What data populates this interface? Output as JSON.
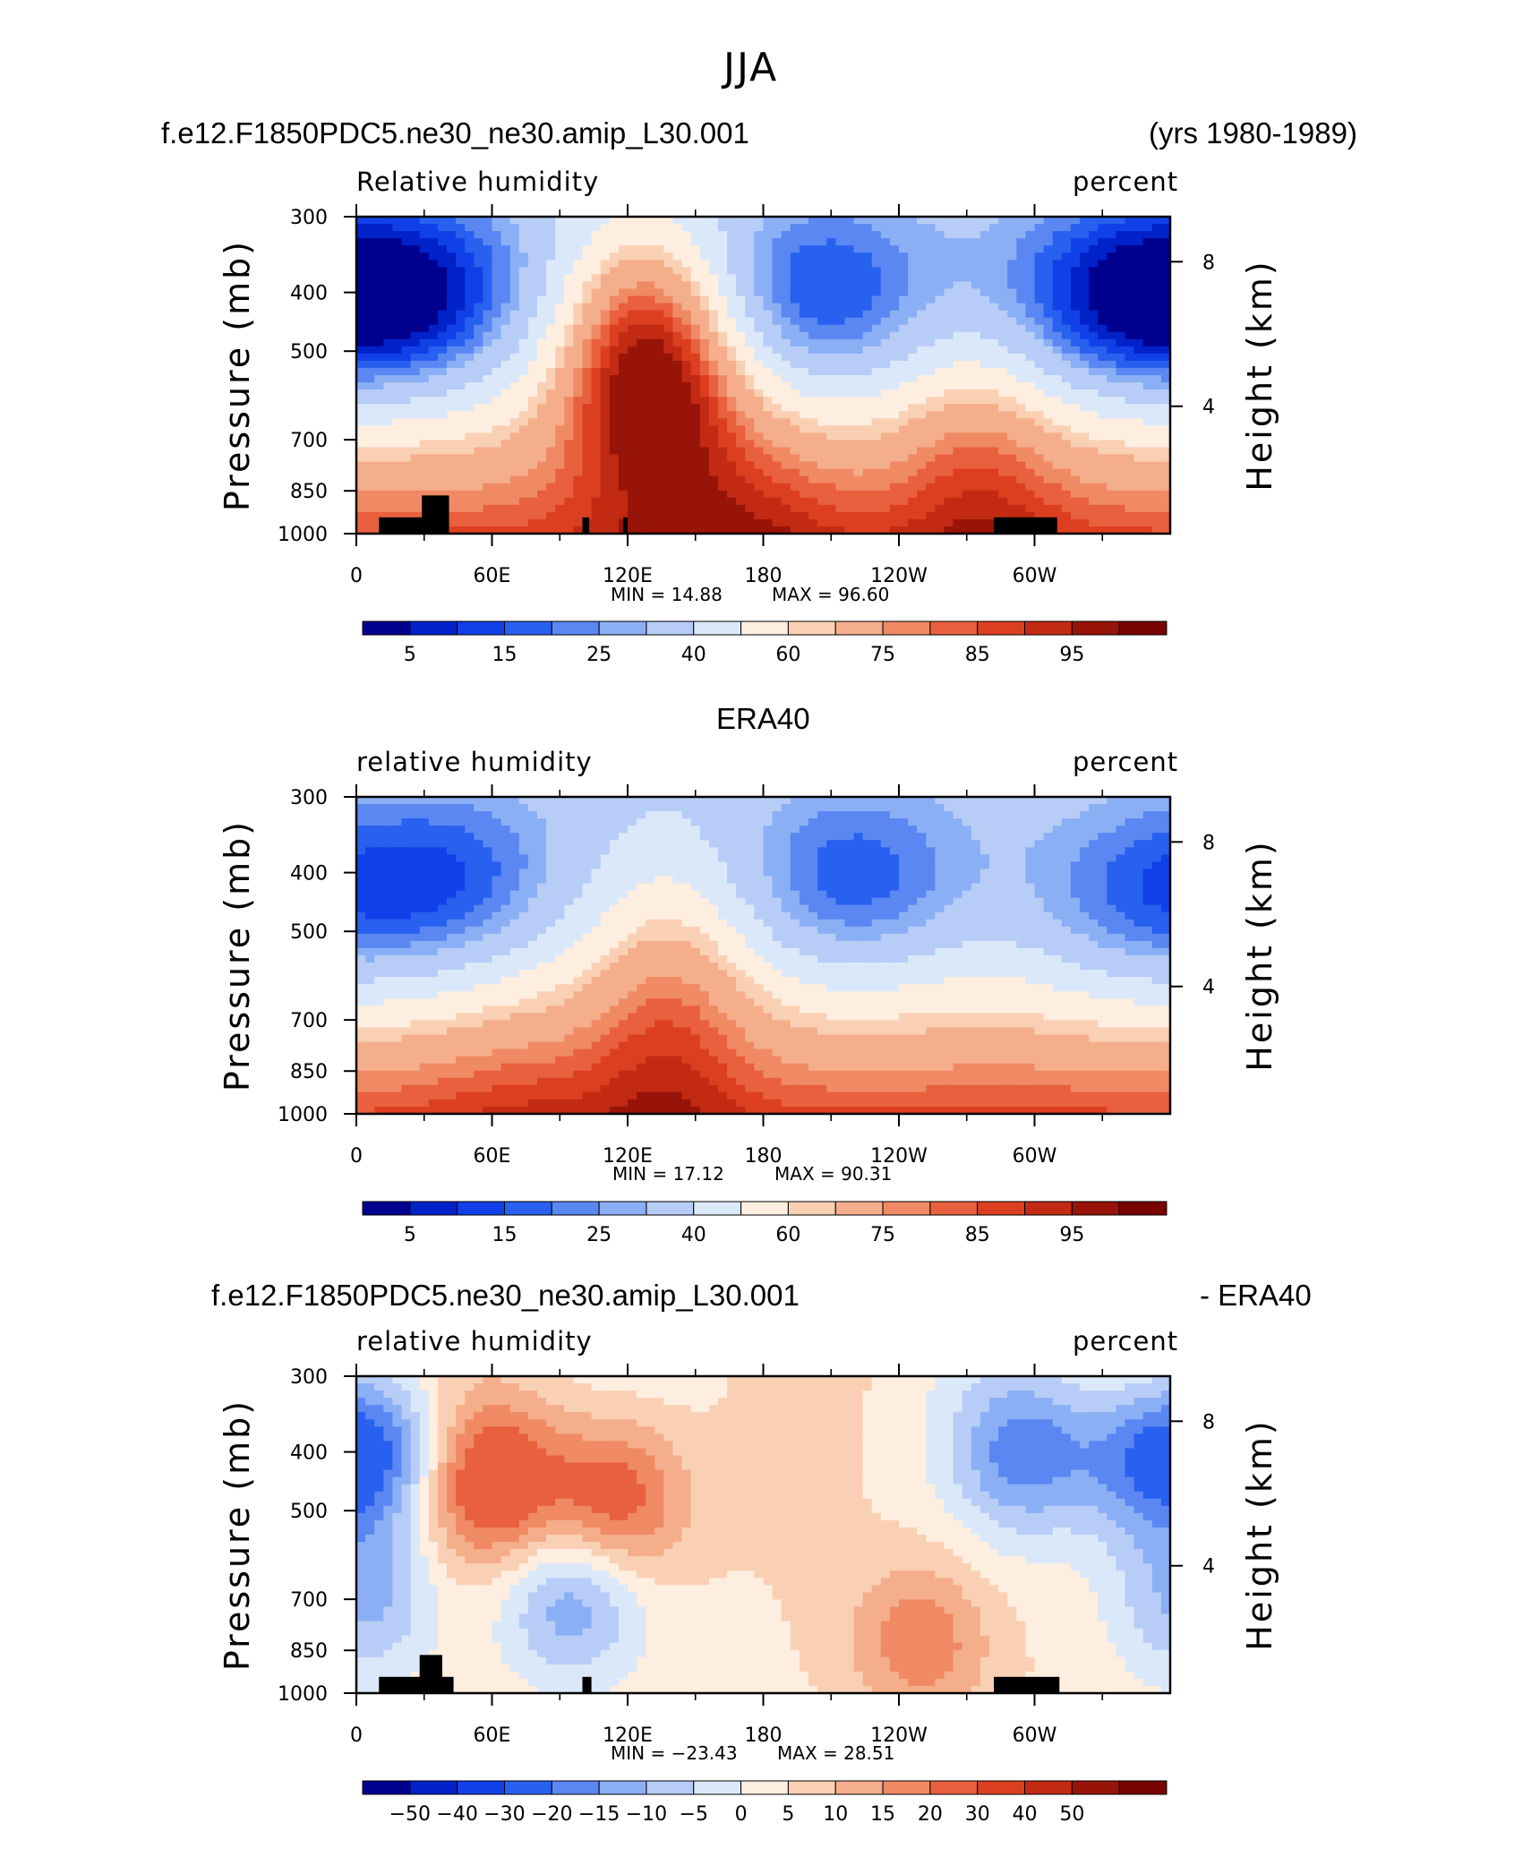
{
  "figure": {
    "main_title": "JJA",
    "panel1_left_title": "f.e12.F1850PDC5.ne30_ne30.amip_L30.001",
    "panel1_right_title": "(yrs 1980-1989)",
    "panel2_title": "ERA40",
    "panel3_left_title": "f.e12.F1850PDC5.ne30_ne30.amip_L30.001",
    "panel3_right_title": "- ERA40"
  },
  "colors": {
    "land_mask": "#000000",
    "abs_scale": [
      "#00008f",
      "#0022c8",
      "#1240e8",
      "#2860ef",
      "#5a87f2",
      "#8baff5",
      "#b7cdf7",
      "#dbe8f9",
      "#fdeee0",
      "#fad0b4",
      "#f5ae8b",
      "#f08a64",
      "#e9603e",
      "#dc3f1f",
      "#c22a13",
      "#981409",
      "#780404"
    ],
    "diff_scale": [
      "#00008f",
      "#0022c8",
      "#1240e8",
      "#2860ef",
      "#5a87f2",
      "#8baff5",
      "#b7cdf7",
      "#dbe8f9",
      "#fdeee0",
      "#fad0b4",
      "#f5ae8b",
      "#f08a64",
      "#e9603e",
      "#dc3f1f",
      "#c22a13",
      "#981409",
      "#780404"
    ]
  },
  "chart_data": [
    {
      "type": "heatmap",
      "panel": "model",
      "left_label": "Relative humidity",
      "right_label": "percent",
      "ylabel": "Pressure (mb)",
      "ylabel_right": "Height (km)",
      "y_ticks": [
        "300",
        "400",
        "500",
        "700",
        "850",
        "1000"
      ],
      "y_right_ticks": [
        "8",
        "4"
      ],
      "x_ticks": [
        "0",
        "60E",
        "120E",
        "180",
        "120W",
        "60W"
      ],
      "min_text": "MIN =   14.88",
      "max_text": "MAX =   96.60",
      "min": 14.88,
      "max": 96.6,
      "colorbar_labels": [
        "5",
        "15",
        "25",
        "40",
        "60",
        "75",
        "85",
        "95"
      ],
      "features": [
        {
          "lon": 205,
          "p": 420,
          "value": 15
        },
        {
          "lon": 330,
          "p": 420,
          "value": 18
        },
        {
          "lon": 10,
          "p": 420,
          "value": 22
        },
        {
          "lon": 35,
          "p": 410,
          "value": 25
        },
        {
          "lon": 140,
          "p": 540,
          "value": 82
        },
        {
          "lon": 120,
          "p": 500,
          "value": 78
        },
        {
          "lon": 180,
          "p": 940,
          "value": 92
        },
        {
          "lon": 275,
          "p": 760,
          "value": 85
        }
      ],
      "land_boxes": [
        {
          "lon0": 10,
          "lon1": 40,
          "p0": 940,
          "h": "low"
        },
        {
          "lon0": 29,
          "lon1": 41,
          "p0": 865,
          "h": "high"
        },
        {
          "lon0": 100,
          "lon1": 103,
          "p0": 940,
          "h": "low"
        },
        {
          "lon0": 118,
          "lon1": 120,
          "p0": 940,
          "h": "low"
        },
        {
          "lon0": 282,
          "lon1": 310,
          "p0": 940,
          "h": "low"
        }
      ]
    },
    {
      "type": "heatmap",
      "panel": "obs",
      "left_label": "relative humidity",
      "right_label": "percent",
      "ylabel": "Pressure (mb)",
      "ylabel_right": "Height (km)",
      "y_ticks": [
        "300",
        "400",
        "500",
        "700",
        "850",
        "1000"
      ],
      "y_right_ticks": [
        "8",
        "4"
      ],
      "x_ticks": [
        "0",
        "60E",
        "120E",
        "180",
        "120W",
        "60W"
      ],
      "min_text": "MIN =   17.12",
      "max_text": "MAX =   90.31",
      "min": 17.12,
      "max": 90.31,
      "colorbar_labels": [
        "5",
        "15",
        "25",
        "40",
        "60",
        "75",
        "85",
        "95"
      ],
      "features": [
        {
          "lon": 220,
          "p": 430,
          "value": 18
        },
        {
          "lon": 45,
          "p": 430,
          "value": 22
        },
        {
          "lon": 340,
          "p": 470,
          "value": 28
        },
        {
          "lon": 10,
          "p": 430,
          "value": 40
        },
        {
          "lon": 140,
          "p": 600,
          "value": 75
        },
        {
          "lon": 70,
          "p": 940,
          "value": 88
        },
        {
          "lon": 130,
          "p": 940,
          "value": 88
        },
        {
          "lon": 290,
          "p": 920,
          "value": 82
        }
      ],
      "land_boxes": []
    },
    {
      "type": "heatmap",
      "panel": "difference",
      "left_label": "relative humidity",
      "right_label": "percent",
      "ylabel": "Pressure (mb)",
      "ylabel_right": "Height (km)",
      "y_ticks": [
        "300",
        "400",
        "500",
        "700",
        "850",
        "1000"
      ],
      "y_right_ticks": [
        "8",
        "4"
      ],
      "x_ticks": [
        "0",
        "60E",
        "120E",
        "180",
        "120W",
        "60W"
      ],
      "min_text": "MIN =  −23.43",
      "max_text": "MAX =   28.51",
      "min": -23.43,
      "max": 28.51,
      "colorbar_labels": [
        "−50",
        "−40",
        "−30",
        "−20",
        "−15",
        "−10",
        "−5",
        "0",
        "5",
        "10",
        "15",
        "20",
        "30",
        "40",
        "50"
      ],
      "features": [
        {
          "lon": 10,
          "p": 400,
          "value": -22
        },
        {
          "lon": 95,
          "p": 700,
          "value": -18
        },
        {
          "lon": 5,
          "p": 700,
          "value": -15
        },
        {
          "lon": 295,
          "p": 400,
          "value": -20
        },
        {
          "lon": 345,
          "p": 420,
          "value": -15
        },
        {
          "lon": 60,
          "p": 450,
          "value": 25
        },
        {
          "lon": 115,
          "p": 480,
          "value": 22
        },
        {
          "lon": 250,
          "p": 820,
          "value": 15
        }
      ],
      "land_boxes": [
        {
          "lon0": 10,
          "lon1": 43,
          "p0": 940,
          "h": "low"
        },
        {
          "lon0": 28,
          "lon1": 38,
          "p0": 865,
          "h": "high"
        },
        {
          "lon0": 100,
          "lon1": 104,
          "p0": 940,
          "h": "low"
        },
        {
          "lon0": 282,
          "lon1": 311,
          "p0": 940,
          "h": "low"
        }
      ]
    }
  ]
}
